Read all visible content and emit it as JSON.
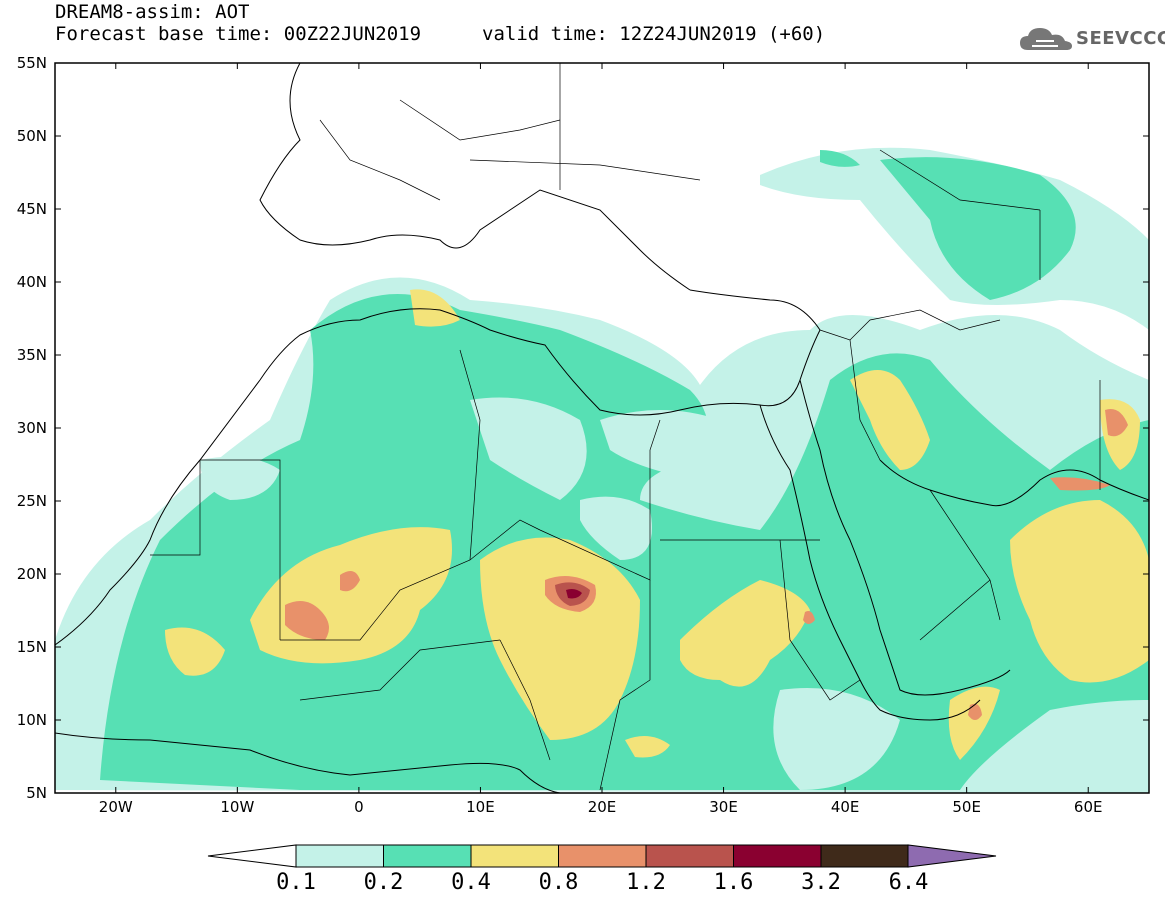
{
  "header": {
    "line1": "DREAM8-assim: AOT",
    "line2_left": "Forecast base time: 00Z22JUN2019",
    "line2_right": "valid time: 12Z24JUN2019 (+60)",
    "logo_text": "SEEVCCC"
  },
  "map": {
    "lon_range": [
      -25,
      65
    ],
    "lat_range": [
      5,
      55
    ],
    "lat_labels": [
      "55N",
      "50N",
      "45N",
      "40N",
      "35N",
      "30N",
      "25N",
      "20N",
      "15N",
      "10N",
      "5N"
    ],
    "lon_labels": [
      "20W",
      "10W",
      "0",
      "10E",
      "20E",
      "30E",
      "40E",
      "50E",
      "60E"
    ]
  },
  "colorbar": {
    "levels": [
      "0.1",
      "0.2",
      "0.4",
      "0.8",
      "1.2",
      "1.6",
      "3.2",
      "6.4"
    ],
    "colors": [
      "#c4f2e8",
      "#57e0b4",
      "#f3e37a",
      "#e8916a",
      "#b9534d",
      "#8a0030",
      "#3f2a1a",
      "#8e6bb0"
    ]
  }
}
